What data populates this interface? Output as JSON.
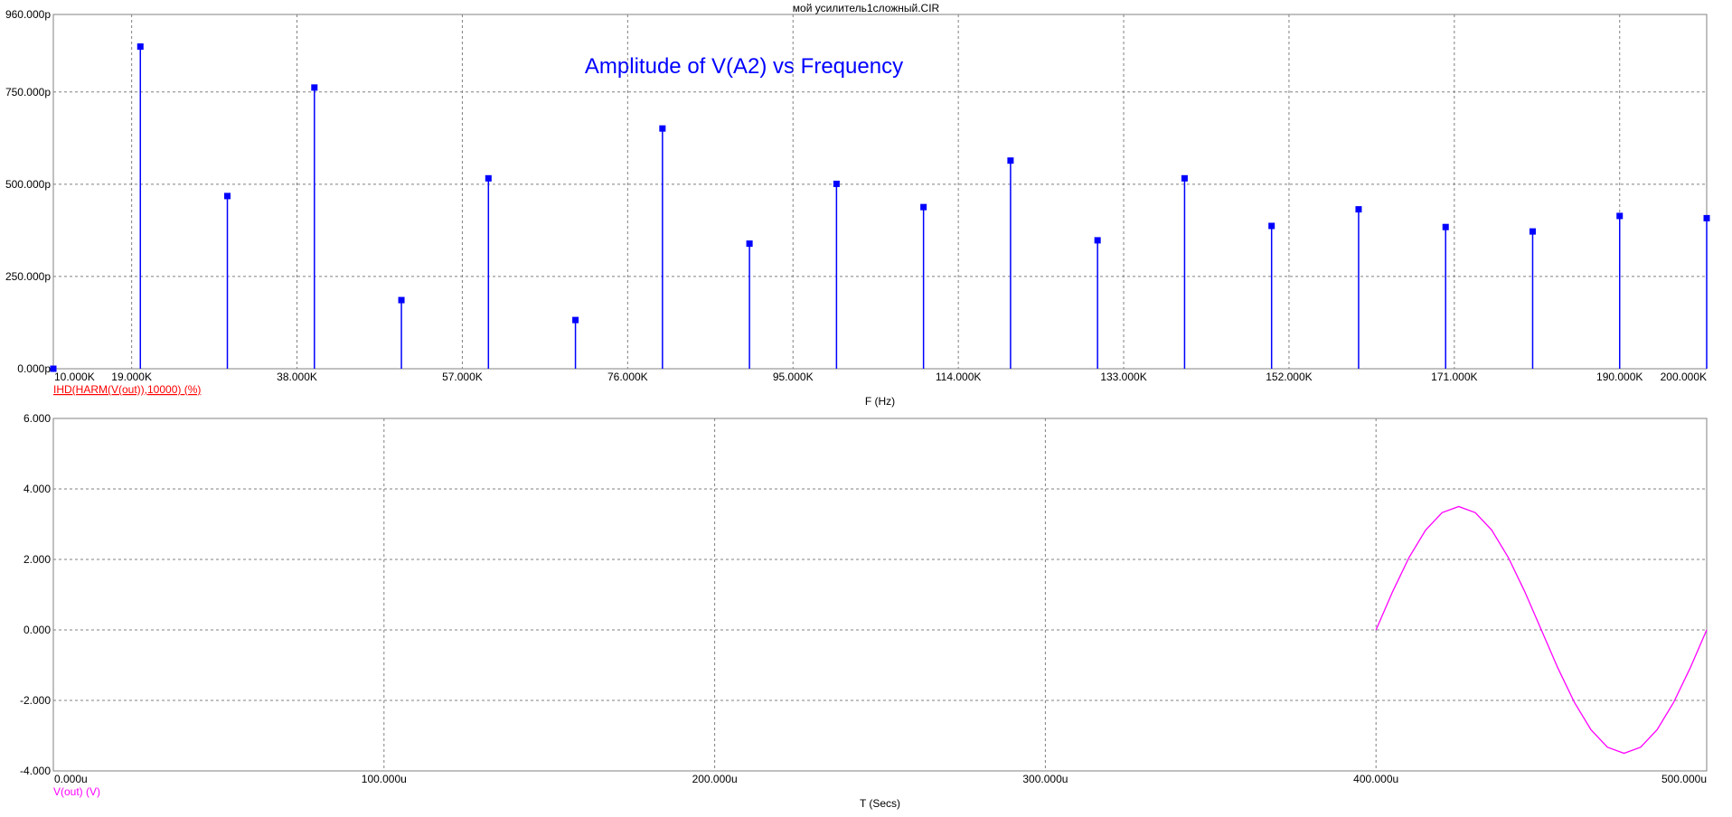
{
  "chart_data": [
    {
      "type": "stem",
      "title": "мой усилитель1сложный.CIR",
      "annotation": "Amplitude of V(A2) vs Frequency",
      "x_label": "F (Hz)",
      "x": [
        10000,
        20000,
        30000,
        40000,
        50000,
        60000,
        70000,
        80000,
        90000,
        100000,
        110000,
        120000,
        130000,
        140000,
        150000,
        160000,
        170000,
        180000,
        190000,
        200000
      ],
      "series": [
        {
          "name": "IHD(HARM(V(out)),10000) (%)",
          "color": "#0000ff",
          "values": [
            0,
            873,
            468,
            762,
            186,
            516,
            132,
            651,
            339,
            501,
            438,
            564,
            348,
            516,
            387,
            432,
            384,
            372,
            414,
            408
          ]
        }
      ],
      "legend_color": "#ff0000",
      "xlim": [
        10000,
        200000
      ],
      "xticks": [
        {
          "value": 10000,
          "label": "10.000K"
        },
        {
          "value": 19000,
          "label": "19.000K"
        },
        {
          "value": 38000,
          "label": "38.000K"
        },
        {
          "value": 57000,
          "label": "57.000K"
        },
        {
          "value": 76000,
          "label": "76.000K"
        },
        {
          "value": 95000,
          "label": "95.000K"
        },
        {
          "value": 114000,
          "label": "114.000K"
        },
        {
          "value": 133000,
          "label": "133.000K"
        },
        {
          "value": 152000,
          "label": "152.000K"
        },
        {
          "value": 171000,
          "label": "171.000K"
        },
        {
          "value": 190000,
          "label": "190.000K"
        },
        {
          "value": 200000,
          "label": "200.000K"
        }
      ],
      "ylim": [
        0,
        960
      ],
      "yticks": [
        {
          "value": 0,
          "label": "0.000p"
        },
        {
          "value": 250,
          "label": "250.000p"
        },
        {
          "value": 500,
          "label": "500.000p"
        },
        {
          "value": 750,
          "label": "750.000p"
        },
        {
          "value": 960,
          "label": "960.000p"
        }
      ],
      "grid": true
    },
    {
      "type": "line",
      "x_label": "T (Secs)",
      "x": [
        400,
        405,
        410,
        415,
        420,
        425,
        430,
        435,
        440,
        445,
        450,
        455,
        460,
        465,
        470,
        475,
        480,
        485,
        490,
        495,
        500
      ],
      "series": [
        {
          "name": "V(out) (V)",
          "color": "#ff00ff",
          "values": [
            0,
            1.082,
            2.057,
            2.832,
            3.329,
            3.5,
            3.329,
            2.832,
            2.057,
            1.082,
            0,
            -1.082,
            -2.057,
            -2.832,
            -3.329,
            -3.5,
            -3.329,
            -2.832,
            -2.057,
            -1.082,
            0
          ]
        }
      ],
      "xlim": [
        0,
        500
      ],
      "xticks": [
        {
          "value": 0,
          "label": "0.000u"
        },
        {
          "value": 100,
          "label": "100.000u"
        },
        {
          "value": 200,
          "label": "200.000u"
        },
        {
          "value": 300,
          "label": "300.000u"
        },
        {
          "value": 400,
          "label": "400.000u"
        },
        {
          "value": 500,
          "label": "500.000u"
        }
      ],
      "ylim": [
        -4,
        6
      ],
      "yticks": [
        {
          "value": -4,
          "label": "-4.000"
        },
        {
          "value": -2,
          "label": "-2.000"
        },
        {
          "value": 0,
          "label": "0.000"
        },
        {
          "value": 2,
          "label": "2.000"
        },
        {
          "value": 4,
          "label": "4.000"
        },
        {
          "value": 6,
          "label": "6.000"
        }
      ],
      "grid": true
    }
  ]
}
